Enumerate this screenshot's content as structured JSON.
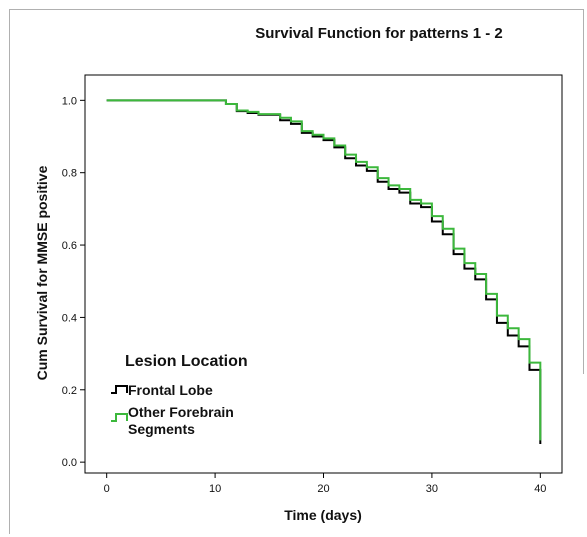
{
  "chart_data": {
    "type": "line",
    "title": "Survival Function for patterns 1 - 2",
    "xlabel": "Time (days)",
    "ylabel": "Cum Survival for MMSE positive",
    "xlim": [
      -2,
      42
    ],
    "ylim": [
      -0.03,
      1.07
    ],
    "xticks": [
      0,
      10,
      20,
      30,
      40
    ],
    "yticks": [
      0.0,
      0.2,
      0.4,
      0.6,
      0.8,
      1.0
    ],
    "ytick_labels": [
      "0.0",
      "0.2",
      "0.4",
      "0.6",
      "0.8",
      "1.0"
    ],
    "legend": {
      "title": "Lesion Location",
      "position": "bottom-left"
    },
    "series": [
      {
        "name": "Frontal Lobe",
        "color": "#000000",
        "step": true,
        "x": [
          0,
          11,
          12,
          13,
          14,
          16,
          17,
          18,
          19,
          20,
          21,
          22,
          23,
          24,
          25,
          26,
          27,
          28,
          29,
          30,
          31,
          32,
          33,
          34,
          35,
          36,
          37,
          38,
          39,
          40
        ],
        "y": [
          1.0,
          0.99,
          0.97,
          0.965,
          0.96,
          0.945,
          0.935,
          0.91,
          0.9,
          0.89,
          0.87,
          0.84,
          0.82,
          0.805,
          0.775,
          0.755,
          0.745,
          0.715,
          0.705,
          0.665,
          0.63,
          0.575,
          0.535,
          0.505,
          0.45,
          0.385,
          0.35,
          0.32,
          0.255,
          0.05
        ]
      },
      {
        "name": "Other Forebrain Segments",
        "color": "#3cb83c",
        "step": true,
        "x": [
          0,
          11,
          12,
          13,
          14,
          16,
          17,
          18,
          19,
          20,
          21,
          22,
          23,
          24,
          25,
          26,
          27,
          28,
          29,
          30,
          31,
          32,
          33,
          34,
          35,
          36,
          37,
          38,
          39,
          40
        ],
        "y": [
          1.0,
          0.99,
          0.972,
          0.968,
          0.962,
          0.952,
          0.942,
          0.915,
          0.905,
          0.895,
          0.875,
          0.85,
          0.83,
          0.815,
          0.785,
          0.765,
          0.755,
          0.725,
          0.715,
          0.68,
          0.645,
          0.59,
          0.55,
          0.52,
          0.465,
          0.405,
          0.37,
          0.34,
          0.275,
          0.06
        ]
      }
    ]
  }
}
